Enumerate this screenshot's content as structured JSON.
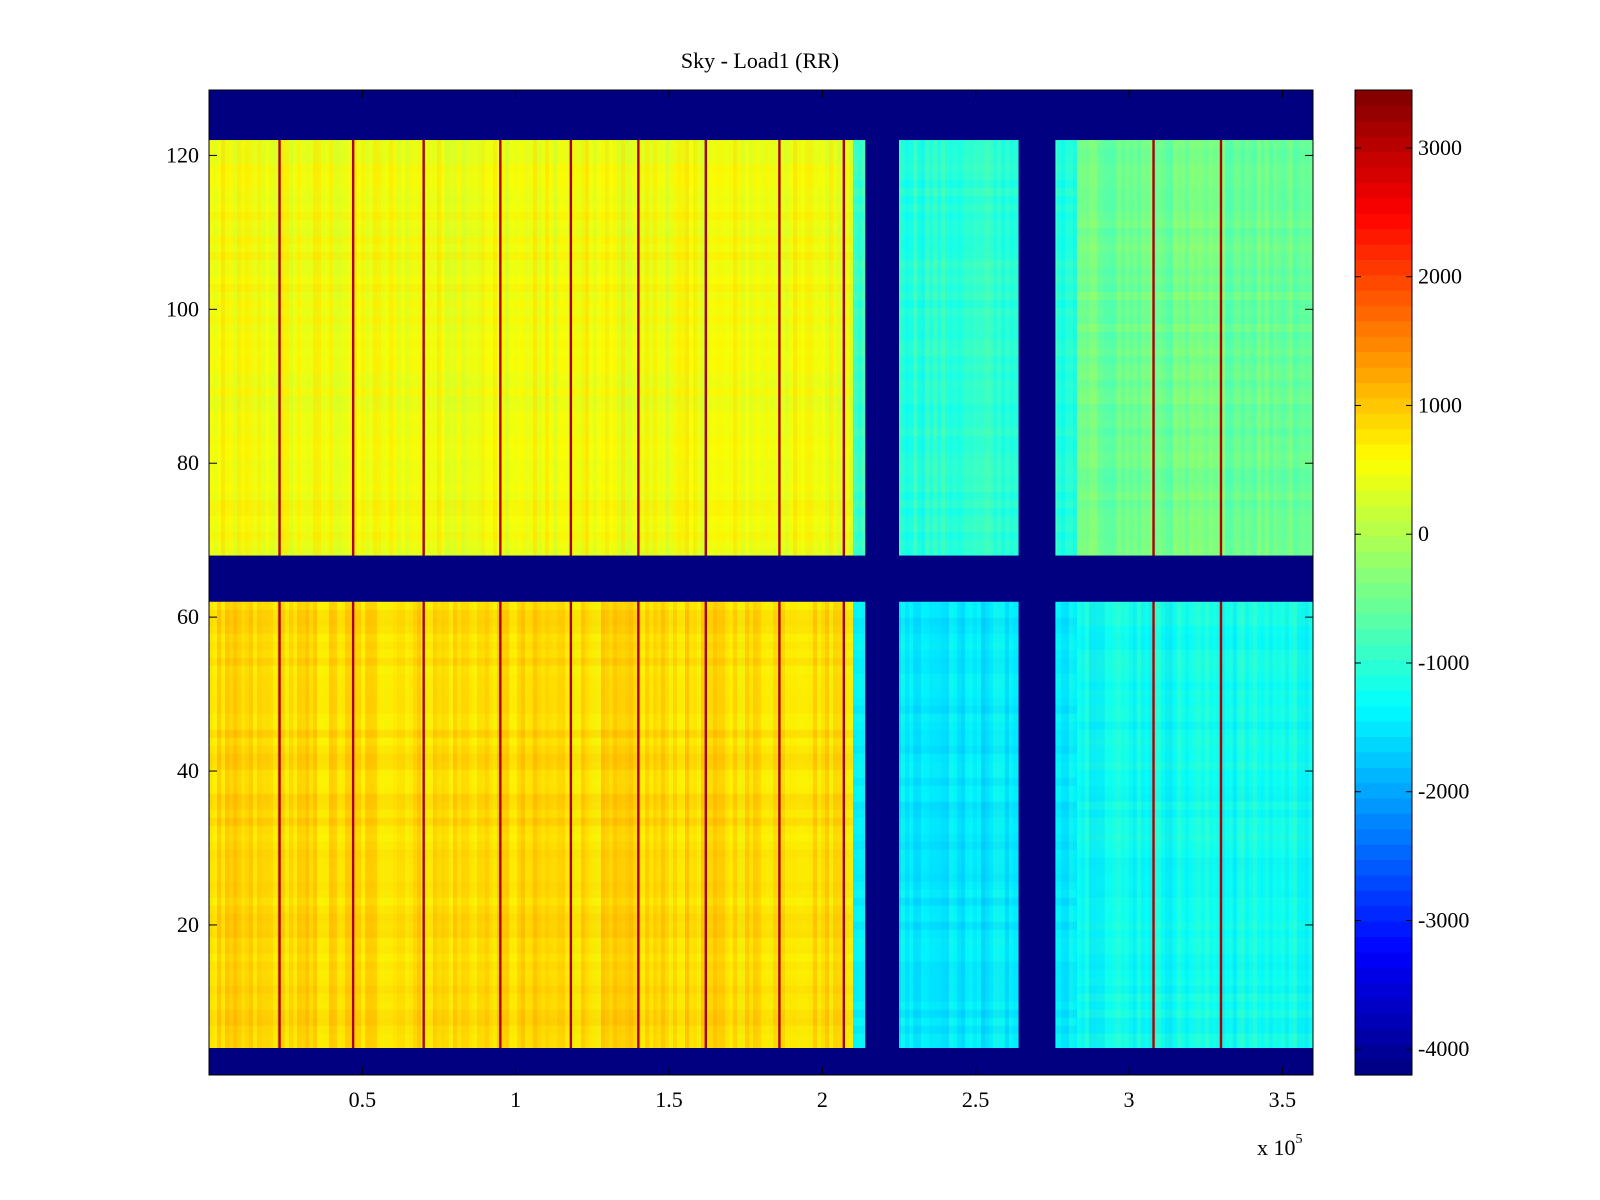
{
  "chart_data": {
    "type": "heatmap",
    "title": "Sky - Load1 (RR)",
    "xlabel": "",
    "ylabel": "",
    "x_exponent_label": "x 10",
    "x_exponent_power": "5",
    "x_range": [
      0,
      3.6
    ],
    "y_range": [
      0.5,
      128.5
    ],
    "xticks": [
      0.5,
      1,
      1.5,
      2,
      2.5,
      3,
      3.5
    ],
    "xtick_labels": [
      "0.5",
      "1",
      "1.5",
      "2",
      "2.5",
      "3",
      "3.5"
    ],
    "yticks": [
      20,
      40,
      60,
      80,
      100,
      120
    ],
    "ytick_labels": [
      "20",
      "40",
      "60",
      "80",
      "100",
      "120"
    ],
    "colorbar": {
      "colormap": "jet",
      "range": [
        -4200,
        3450
      ],
      "ticks": [
        -4000,
        -3000,
        -2000,
        -1000,
        0,
        1000,
        2000,
        3000
      ],
      "tick_labels": [
        "-4000",
        "-3000",
        "-2000",
        "-1000",
        "0",
        "1000",
        "2000",
        "3000"
      ]
    },
    "masked_value": -4200,
    "masked_rows": [
      {
        "from": 0.5,
        "to": 4
      },
      {
        "from": 62,
        "to": 68
      },
      {
        "from": 122,
        "to": 128.5
      }
    ],
    "masked_columns": [
      {
        "from": 2.14,
        "to": 2.25
      },
      {
        "from": 2.64,
        "to": 2.76
      }
    ],
    "regions": [
      {
        "x_from": 0,
        "x_to": 2.1,
        "y_from": 62,
        "y_to": 122,
        "level": 500
      },
      {
        "x_from": 0,
        "x_to": 2.1,
        "y_from": 4,
        "y_to": 62,
        "level": 850
      },
      {
        "x_from": 2.1,
        "x_to": 2.83,
        "y_from": 62,
        "y_to": 122,
        "level": -1000
      },
      {
        "x_from": 2.1,
        "x_to": 2.83,
        "y_from": 4,
        "y_to": 62,
        "level": -1500
      },
      {
        "x_from": 2.83,
        "x_to": 3.6,
        "y_from": 62,
        "y_to": 122,
        "level": -500
      },
      {
        "x_from": 2.83,
        "x_to": 3.6,
        "y_from": 4,
        "y_to": 62,
        "level": -1200
      }
    ],
    "spike_columns_x": [
      0.23,
      0.47,
      0.7,
      0.95,
      1.18,
      1.4,
      1.62,
      1.86,
      2.07,
      3.08,
      3.3
    ]
  }
}
